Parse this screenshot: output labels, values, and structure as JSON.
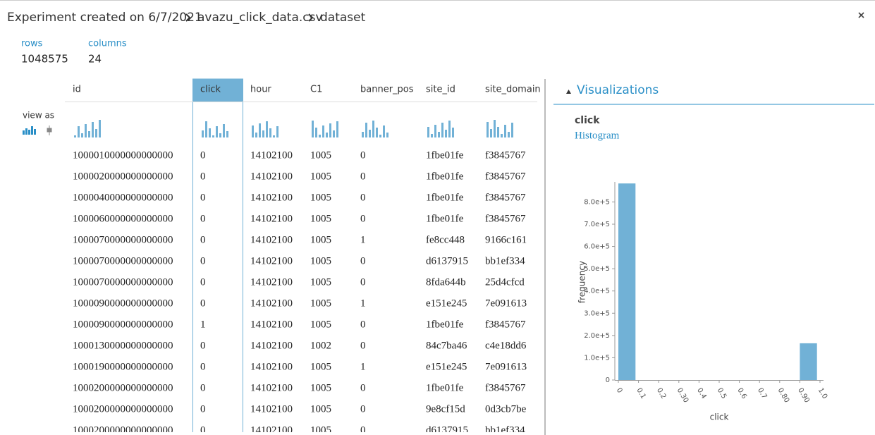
{
  "header": {
    "breadcrumb": [
      "Experiment created on 6/7/2021",
      "avazu_click_data.csv",
      "dataset"
    ]
  },
  "summary": {
    "rows_label": "rows",
    "rows": 1048575,
    "columns_label": "columns",
    "columns": 24
  },
  "view_as": "view as",
  "table": {
    "columns": [
      "id",
      "click",
      "hour",
      "C1",
      "banner_pos",
      "site_id",
      "site_domain"
    ],
    "selected_column": 1,
    "rows": [
      [
        "1000010000000000000",
        "0",
        "14102100",
        "1005",
        "0",
        "1fbe01fe",
        "f3845767"
      ],
      [
        "1000020000000000000",
        "0",
        "14102100",
        "1005",
        "0",
        "1fbe01fe",
        "f3845767"
      ],
      [
        "1000040000000000000",
        "0",
        "14102100",
        "1005",
        "0",
        "1fbe01fe",
        "f3845767"
      ],
      [
        "1000060000000000000",
        "0",
        "14102100",
        "1005",
        "0",
        "1fbe01fe",
        "f3845767"
      ],
      [
        "1000070000000000000",
        "0",
        "14102100",
        "1005",
        "1",
        "fe8cc448",
        "9166c161"
      ],
      [
        "1000070000000000000",
        "0",
        "14102100",
        "1005",
        "0",
        "d6137915",
        "bb1ef334"
      ],
      [
        "1000070000000000000",
        "0",
        "14102100",
        "1005",
        "0",
        "8fda644b",
        "25d4cfcd"
      ],
      [
        "1000090000000000000",
        "0",
        "14102100",
        "1005",
        "1",
        "e151e245",
        "7e091613"
      ],
      [
        "1000090000000000000",
        "1",
        "14102100",
        "1005",
        "0",
        "1fbe01fe",
        "f3845767"
      ],
      [
        "1000130000000000000",
        "0",
        "14102100",
        "1002",
        "0",
        "84c7ba46",
        "c4e18dd6"
      ],
      [
        "1000190000000000000",
        "0",
        "14102100",
        "1005",
        "1",
        "e151e245",
        "7e091613"
      ],
      [
        "1000200000000000000",
        "0",
        "14102100",
        "1005",
        "0",
        "1fbe01fe",
        "f3845767"
      ],
      [
        "1000200000000000000",
        "0",
        "14102100",
        "1005",
        "0",
        "9e8cf15d",
        "0d3cb7be"
      ],
      [
        "1000200000000000000",
        "0",
        "14102100",
        "1005",
        "0",
        "d6137915",
        "bb1ef334"
      ]
    ]
  },
  "panel": {
    "title": "Visualizations",
    "column": "click",
    "kind": "Histogram"
  },
  "chart_data": {
    "type": "histogram",
    "color": "#71b1d6",
    "bins": [
      0,
      0.1,
      0.2,
      0.3,
      0.4,
      0.5,
      0.6,
      0.7,
      0.8,
      0.9,
      1.0
    ],
    "values": [
      883000,
      0,
      0,
      0,
      0,
      0,
      0,
      0,
      0,
      165000
    ],
    "xlabel": "click",
    "ylabel": "frequency",
    "xlim": [
      0,
      1.0
    ],
    "ylim": [
      0,
      890000
    ],
    "xticks": [
      0,
      0.1,
      0.2,
      {
        "value": 0.3,
        "label": "0.30"
      },
      0.4,
      0.5,
      0.6,
      0.7,
      {
        "value": 0.8,
        "label": "0.80"
      },
      {
        "value": 0.9,
        "label": "0.90"
      },
      {
        "value": 1.0,
        "label": "1.0"
      }
    ],
    "yticks": [
      0,
      {
        "value": 100000,
        "label": "1.0e+5"
      },
      {
        "value": 200000,
        "label": "2.0e+5"
      },
      {
        "value": 300000,
        "label": "3.0e+5"
      },
      {
        "value": 400000,
        "label": "4.0e+5"
      },
      {
        "value": 500000,
        "label": "5.0e+5"
      },
      {
        "value": 600000,
        "label": "6.0e+5"
      },
      {
        "value": 700000,
        "label": "7.0e+5"
      },
      {
        "value": 800000,
        "label": "8.0e+5"
      }
    ]
  }
}
